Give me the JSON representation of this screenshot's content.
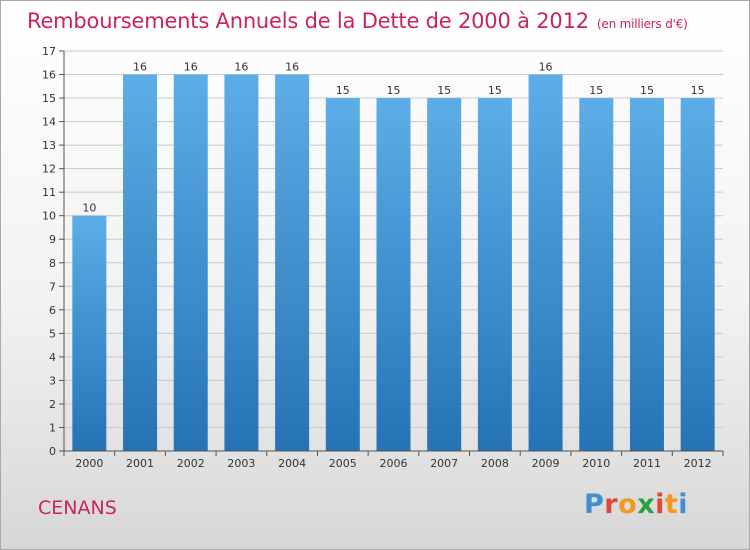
{
  "header": {
    "title": "Remboursements Annuels de la Dette de 2000 à 2012",
    "unit": "(en milliers d'€)"
  },
  "footer": {
    "commune": "CENANS",
    "brand": [
      "P",
      "r",
      "o",
      "x",
      "i",
      "t",
      "i"
    ],
    "brand_colors": [
      "#3f8fd1",
      "#e0463a",
      "#f39a1d",
      "#2e9e3e",
      "#e0463a",
      "#f39a1d",
      "#3f8fd1"
    ]
  },
  "chart_data": {
    "type": "bar",
    "title": "Remboursements Annuels de la Dette de 2000 à 2012",
    "xlabel": "",
    "ylabel": "",
    "categories": [
      "2000",
      "2001",
      "2002",
      "2003",
      "2004",
      "2005",
      "2006",
      "2007",
      "2008",
      "2009",
      "2010",
      "2011",
      "2012"
    ],
    "values": [
      10,
      16,
      16,
      16,
      16,
      15,
      15,
      15,
      15,
      16,
      15,
      15,
      15
    ],
    "ylim": [
      0,
      17
    ],
    "yticks": [
      0,
      1,
      2,
      3,
      4,
      5,
      6,
      7,
      8,
      9,
      10,
      11,
      12,
      13,
      14,
      15,
      16,
      17
    ],
    "grid": true,
    "legend": "none",
    "colors": {
      "bar_top": "#5dade8",
      "bar_bottom": "#2573b5",
      "grid": "#c8c8c8"
    }
  }
}
